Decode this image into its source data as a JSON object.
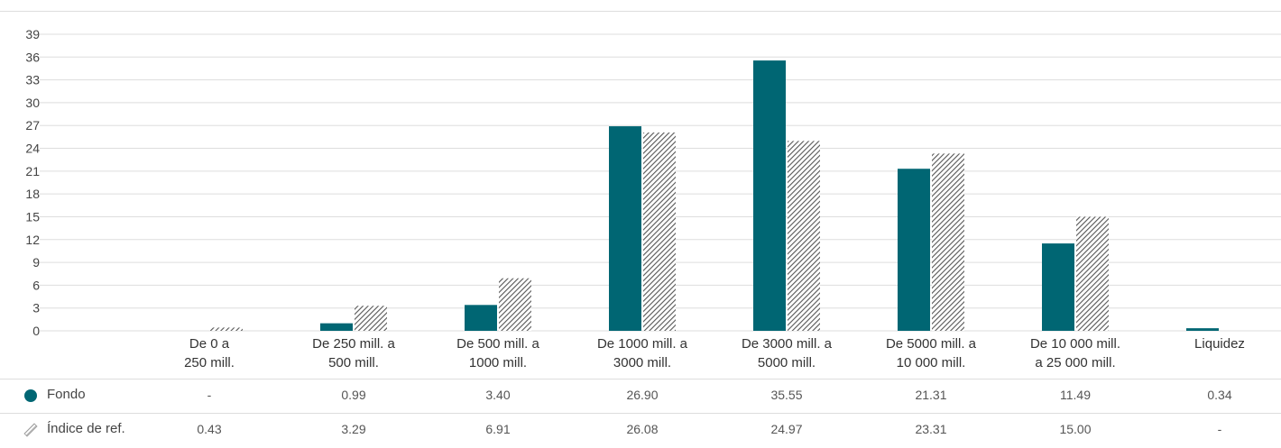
{
  "colors": {
    "fund": "#006673",
    "benchmark_pattern": "#555555"
  },
  "y_ticks": [
    "0",
    "3",
    "6",
    "9",
    "12",
    "15",
    "18",
    "21",
    "24",
    "27",
    "30",
    "33",
    "36",
    "39"
  ],
  "categories": [
    [
      "De 0 a",
      "250 mill."
    ],
    [
      "De 250 mill. a",
      "500 mill."
    ],
    [
      "De 500 mill. a",
      "1000 mill."
    ],
    [
      "De 1000 mill. a",
      "3000 mill."
    ],
    [
      "De 3000 mill. a",
      "5000 mill."
    ],
    [
      "De 5000 mill. a",
      "10 000 mill."
    ],
    [
      "De 10 000 mill.",
      "a 25 000 mill."
    ],
    [
      "Liquidez"
    ]
  ],
  "table": {
    "fund_label": "Fondo",
    "benchmark_label": "Índice de ref.",
    "fund_values": [
      "-",
      "0.99",
      "3.40",
      "26.90",
      "35.55",
      "21.31",
      "11.49",
      "0.34"
    ],
    "benchmark_values": [
      "0.43",
      "3.29",
      "6.91",
      "26.08",
      "24.97",
      "23.31",
      "15.00",
      "-"
    ]
  },
  "chart_data": {
    "type": "bar",
    "categories": [
      "De 0 a 250 mill.",
      "De 250 mill. a 500 mill.",
      "De 500 mill. a 1000 mill.",
      "De 1000 mill. a 3000 mill.",
      "De 3000 mill. a 5000 mill.",
      "De 5000 mill. a 10 000 mill.",
      "De 10 000 mill. a 25 000 mill.",
      "Liquidez"
    ],
    "series": [
      {
        "name": "Fondo",
        "values": [
          0,
          0.99,
          3.4,
          26.9,
          35.55,
          21.31,
          11.49,
          0.34
        ]
      },
      {
        "name": "Índice de ref.",
        "values": [
          0.43,
          3.29,
          6.91,
          26.08,
          24.97,
          23.31,
          15.0,
          0
        ]
      }
    ],
    "title": "",
    "xlabel": "",
    "ylabel": "",
    "ylim": [
      0,
      39
    ],
    "grid": true,
    "legend": "table-below"
  }
}
